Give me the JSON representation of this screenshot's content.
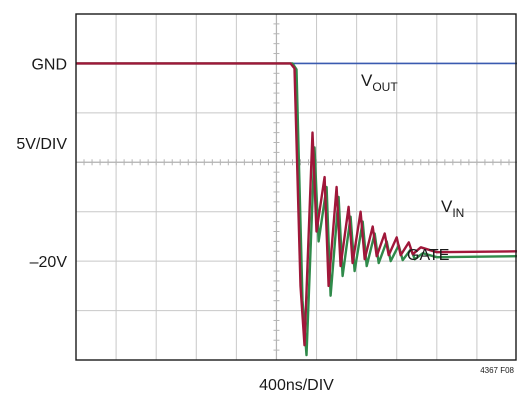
{
  "chart_data": {
    "type": "line",
    "title": "",
    "xlabel": "400ns/DIV",
    "ylabel": "5V/DIV",
    "y_markers": {
      "gnd": "GND",
      "neg20": "–20V"
    },
    "figure_id": "4367 F08",
    "grid": true,
    "x_divisions": 11,
    "y_divisions": 7,
    "xlim": [
      0,
      4400
    ],
    "ylim": [
      -30,
      5
    ],
    "x_unit": "ns",
    "y_unit": "V",
    "series": [
      {
        "name": "VOUT",
        "label_main": "V",
        "label_sub": "OUT",
        "color": "#3a5bb0",
        "x": [
          0,
          2200,
          4400
        ],
        "y": [
          0,
          0,
          0
        ]
      },
      {
        "name": "VIN",
        "label_main": "V",
        "label_sub": "IN",
        "color": "#a0173a",
        "x": [
          0,
          2140,
          2180,
          2240,
          2280,
          2360,
          2400,
          2480,
          2520,
          2600,
          2640,
          2720,
          2760,
          2840,
          2880,
          2960,
          3000,
          3080,
          3120,
          3200,
          3240,
          3320,
          3360,
          3440,
          3600,
          4400
        ],
        "y": [
          0,
          0,
          -0.5,
          -22.5,
          -28.5,
          -7.0,
          -17.0,
          -11.5,
          -22.5,
          -12.5,
          -20.5,
          -14.5,
          -20.2,
          -15.0,
          -19.8,
          -16.5,
          -19.5,
          -17.2,
          -19.4,
          -17.6,
          -19.4,
          -18.1,
          -19.3,
          -18.6,
          -19.1,
          -19.0
        ]
      },
      {
        "name": "GATE",
        "label_main": "GATE",
        "label_sub": "",
        "color": "#2f8a4a",
        "x": [
          0,
          2160,
          2200,
          2260,
          2300,
          2380,
          2420,
          2500,
          2540,
          2620,
          2660,
          2740,
          2780,
          2860,
          2900,
          2980,
          3020,
          3100,
          3140,
          3220,
          3260,
          3340,
          3380,
          3460,
          3600,
          4400
        ],
        "y": [
          0,
          0,
          -0.6,
          -24.0,
          -29.5,
          -8.5,
          -18.0,
          -12.5,
          -23.5,
          -13.5,
          -21.5,
          -15.5,
          -21.0,
          -16.0,
          -20.5,
          -17.2,
          -20.2,
          -18.0,
          -20.0,
          -18.4,
          -19.9,
          -18.8,
          -19.8,
          -19.2,
          -19.6,
          -19.5
        ]
      }
    ]
  }
}
